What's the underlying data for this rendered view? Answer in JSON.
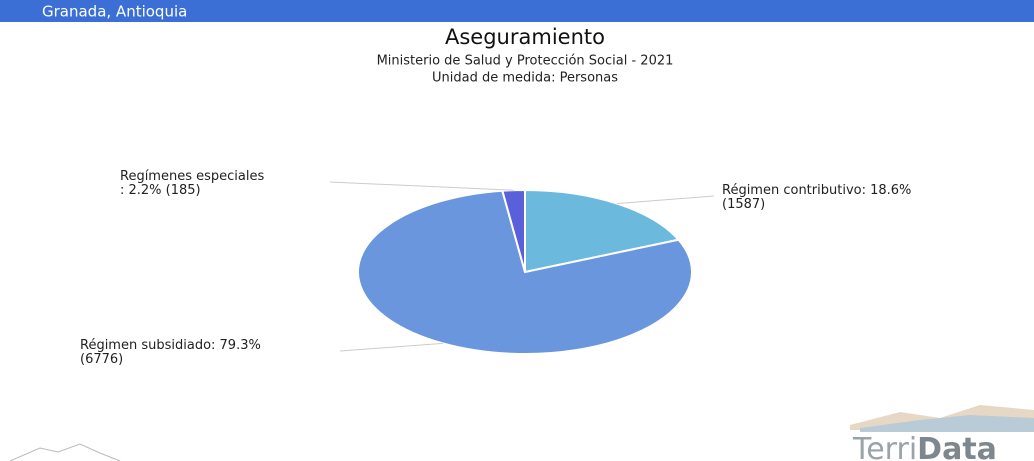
{
  "header": "Granada, Antioquia",
  "logo": [
    "Terri",
    "Data"
  ],
  "chart_data": {
    "type": "pie",
    "title": "Aseguramiento",
    "subtitle": [
      "Ministerio de Salud y Protección Social - 2021",
      "Unidad de medida: Personas"
    ],
    "categories": [
      "Régimen contributivo",
      "Régimen subsidiado",
      "Regímenes especiales"
    ],
    "values": [
      1587,
      6776,
      185
    ],
    "value_labels": [
      [
        "Régimen contributivo: 18.6%",
        "(1587)"
      ],
      [
        "Régimen subsidiado: 79.3%",
        "(6776)"
      ],
      [
        "Regímenes especiales",
        ": 2.2% (185)"
      ]
    ],
    "colors": [
      "#6cb9de",
      "#6a96dd",
      "#5a60d9"
    ]
  }
}
